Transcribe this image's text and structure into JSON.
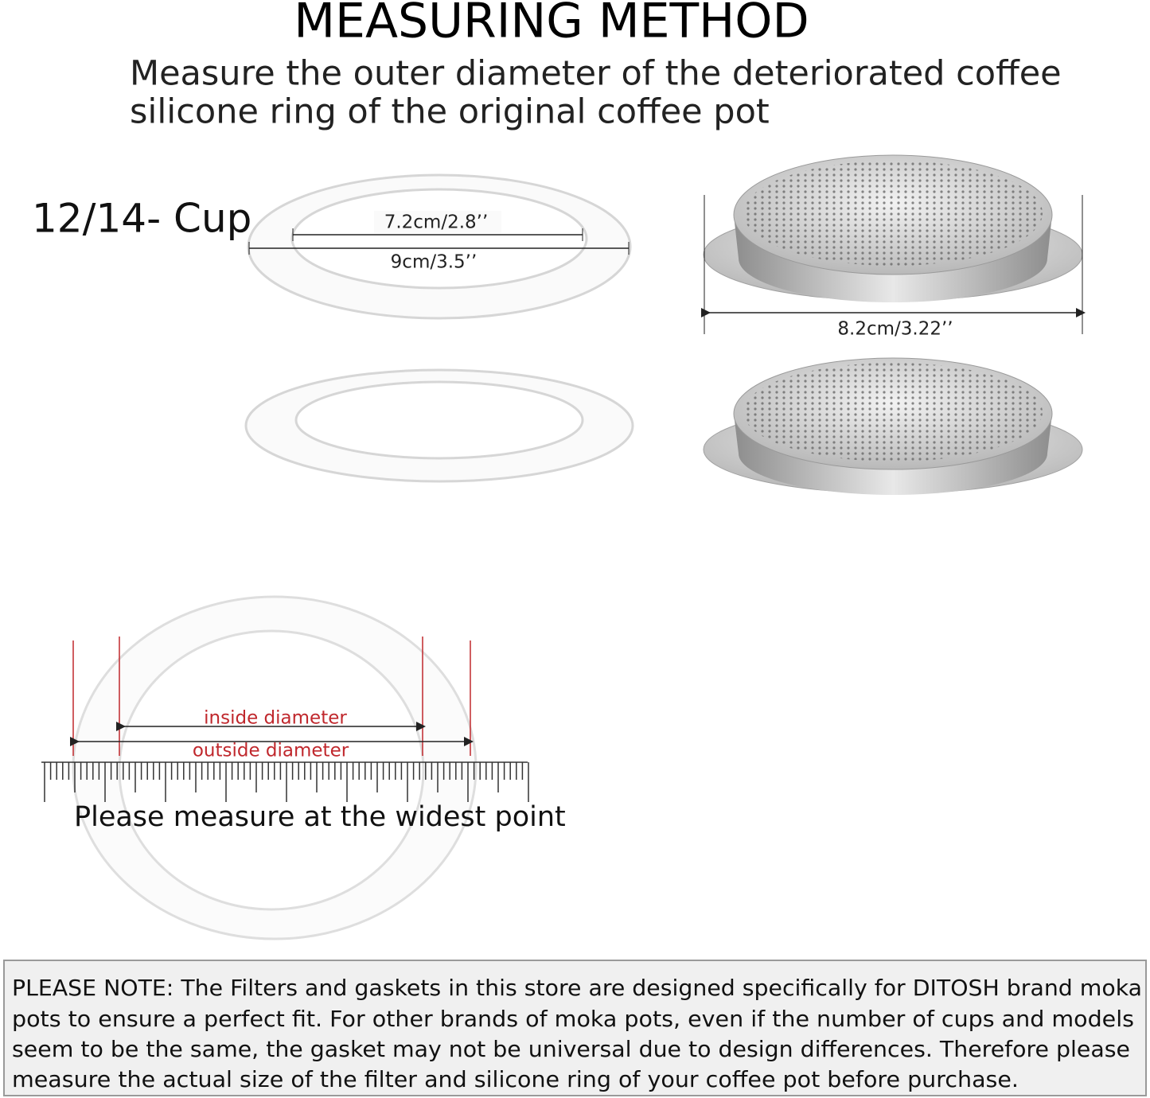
{
  "title": "MEASURING METHOD",
  "subtitle": [
    "Measure the outer diameter of the deteriorated coffee",
    "silicone ring of the original coffee pot"
  ],
  "size_label": "12/14- Cup",
  "gasket": {
    "inner": "7.2cm/2.8’’",
    "outer": "9cm/3.5’’"
  },
  "filter": {
    "diameter": "8.2cm/3.22’’"
  },
  "diagram": {
    "inside": "inside diameter",
    "outside": "outside diameter",
    "instruction": "Please measure at the widest point"
  },
  "note": [
    "PLEASE NOTE: The Filters and gaskets in this store are designed specifically for DITOSH brand moka",
    "pots to ensure a perfect fit. For other brands of moka pots, even if the number of cups and models",
    "seem to be the same, the gasket may not be universal due to design differences. Therefore please",
    "measure the actual size of the filter and silicone ring of your coffee pot before purchase."
  ]
}
